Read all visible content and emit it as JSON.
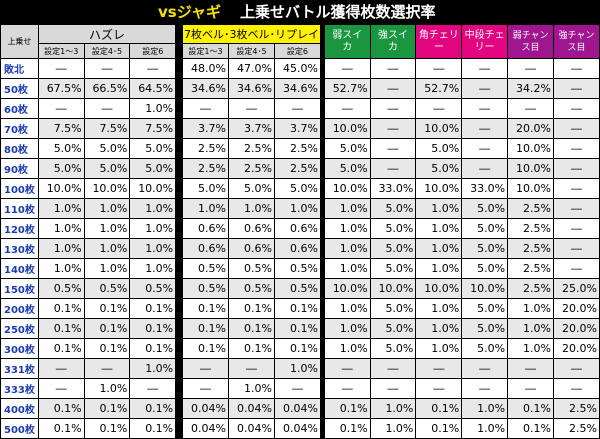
{
  "title": {
    "vs": "vsジャギ",
    "main": "上乗せバトル獲得枚数選択率"
  },
  "header": {
    "row_label": "上乗せ",
    "groups": {
      "hazure": "ハズレ",
      "bell": "7枚ベル･3枚ベル･リプレイ"
    },
    "settings": [
      "設定1～3",
      "設定4･5",
      "設定6"
    ],
    "roles": {
      "jaku_suika": "弱スイカ",
      "kyo_suika": "強スイカ",
      "kado_cherry": "角チェリー",
      "chudan_cherry": "中段チェリー",
      "jaku_chance": "弱チャンス目",
      "kyo_chance": "強チャンス目"
    }
  },
  "rows": [
    {
      "label": "敗北",
      "v": [
        "―",
        "―",
        "―",
        "48.0%",
        "47.0%",
        "45.0%",
        "―",
        "―",
        "―",
        "―",
        "―",
        "―"
      ]
    },
    {
      "label": "50枚",
      "v": [
        "67.5%",
        "66.5%",
        "64.5%",
        "34.6%",
        "34.6%",
        "34.6%",
        "52.7%",
        "―",
        "52.7%",
        "―",
        "34.2%",
        "―"
      ]
    },
    {
      "label": "60枚",
      "v": [
        "―",
        "―",
        "1.0%",
        "―",
        "―",
        "―",
        "―",
        "―",
        "―",
        "―",
        "―",
        "―"
      ]
    },
    {
      "label": "70枚",
      "v": [
        "7.5%",
        "7.5%",
        "7.5%",
        "3.7%",
        "3.7%",
        "3.7%",
        "10.0%",
        "―",
        "10.0%",
        "―",
        "20.0%",
        "―"
      ]
    },
    {
      "label": "80枚",
      "v": [
        "5.0%",
        "5.0%",
        "5.0%",
        "2.5%",
        "2.5%",
        "2.5%",
        "5.0%",
        "―",
        "5.0%",
        "―",
        "10.0%",
        "―"
      ]
    },
    {
      "label": "90枚",
      "v": [
        "5.0%",
        "5.0%",
        "5.0%",
        "2.5%",
        "2.5%",
        "2.5%",
        "5.0%",
        "―",
        "5.0%",
        "―",
        "10.0%",
        "―"
      ]
    },
    {
      "label": "100枚",
      "v": [
        "10.0%",
        "10.0%",
        "10.0%",
        "5.0%",
        "5.0%",
        "5.0%",
        "10.0%",
        "33.0%",
        "10.0%",
        "33.0%",
        "10.0%",
        "―"
      ]
    },
    {
      "label": "110枚",
      "v": [
        "1.0%",
        "1.0%",
        "1.0%",
        "1.0%",
        "1.0%",
        "1.0%",
        "1.0%",
        "5.0%",
        "1.0%",
        "5.0%",
        "2.5%",
        "―"
      ]
    },
    {
      "label": "120枚",
      "v": [
        "1.0%",
        "1.0%",
        "1.0%",
        "0.6%",
        "0.6%",
        "0.6%",
        "1.0%",
        "5.0%",
        "1.0%",
        "5.0%",
        "2.5%",
        "―"
      ]
    },
    {
      "label": "130枚",
      "v": [
        "1.0%",
        "1.0%",
        "1.0%",
        "0.6%",
        "0.6%",
        "0.6%",
        "1.0%",
        "5.0%",
        "1.0%",
        "5.0%",
        "2.5%",
        "―"
      ]
    },
    {
      "label": "140枚",
      "v": [
        "1.0%",
        "1.0%",
        "1.0%",
        "0.5%",
        "0.5%",
        "0.5%",
        "1.0%",
        "5.0%",
        "1.0%",
        "5.0%",
        "2.5%",
        "―"
      ]
    },
    {
      "label": "150枚",
      "v": [
        "0.5%",
        "0.5%",
        "0.5%",
        "0.5%",
        "0.5%",
        "0.5%",
        "10.0%",
        "10.0%",
        "10.0%",
        "10.0%",
        "2.5%",
        "25.0%"
      ]
    },
    {
      "label": "200枚",
      "v": [
        "0.1%",
        "0.1%",
        "0.1%",
        "0.1%",
        "0.1%",
        "0.1%",
        "1.0%",
        "5.0%",
        "1.0%",
        "5.0%",
        "1.0%",
        "20.0%"
      ]
    },
    {
      "label": "250枚",
      "v": [
        "0.1%",
        "0.1%",
        "0.1%",
        "0.1%",
        "0.1%",
        "0.1%",
        "1.0%",
        "5.0%",
        "1.0%",
        "5.0%",
        "1.0%",
        "20.0%"
      ]
    },
    {
      "label": "300枚",
      "v": [
        "0.1%",
        "0.1%",
        "0.1%",
        "0.1%",
        "0.1%",
        "0.1%",
        "1.0%",
        "5.0%",
        "1.0%",
        "5.0%",
        "1.0%",
        "20.0%"
      ]
    },
    {
      "label": "331枚",
      "v": [
        "―",
        "―",
        "1.0%",
        "―",
        "―",
        "1.0%",
        "―",
        "―",
        "―",
        "―",
        "―",
        "―"
      ]
    },
    {
      "label": "333枚",
      "v": [
        "―",
        "1.0%",
        "―",
        "―",
        "1.0%",
        "―",
        "―",
        "―",
        "―",
        "―",
        "―",
        "―"
      ]
    },
    {
      "label": "400枚",
      "v": [
        "0.1%",
        "0.1%",
        "0.1%",
        "0.04%",
        "0.04%",
        "0.04%",
        "0.1%",
        "1.0%",
        "0.1%",
        "1.0%",
        "0.1%",
        "2.5%"
      ]
    },
    {
      "label": "500枚",
      "v": [
        "0.1%",
        "0.1%",
        "0.1%",
        "0.04%",
        "0.04%",
        "0.04%",
        "0.1%",
        "1.0%",
        "0.1%",
        "1.0%",
        "0.1%",
        "2.5%"
      ]
    }
  ]
}
